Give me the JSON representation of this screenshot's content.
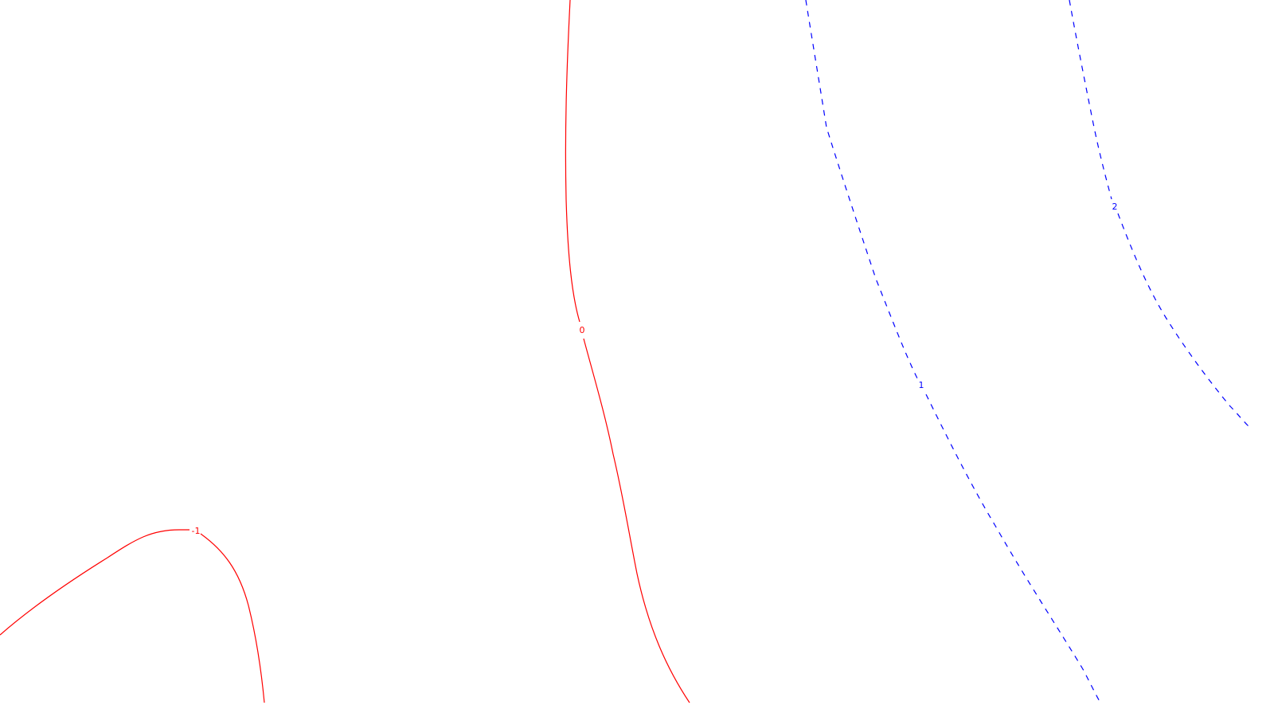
{
  "contour_plot": {
    "contour_lines": [
      {
        "level_label": "-1",
        "color": "#ff0000",
        "style": "solid"
      },
      {
        "level_label": "0",
        "color": "#ff0000",
        "style": "solid"
      },
      {
        "level_label": "1",
        "color": "#0000ff",
        "style": "dashed"
      },
      {
        "level_label": "2",
        "color": "#0000ff",
        "style": "dashed"
      }
    ]
  }
}
